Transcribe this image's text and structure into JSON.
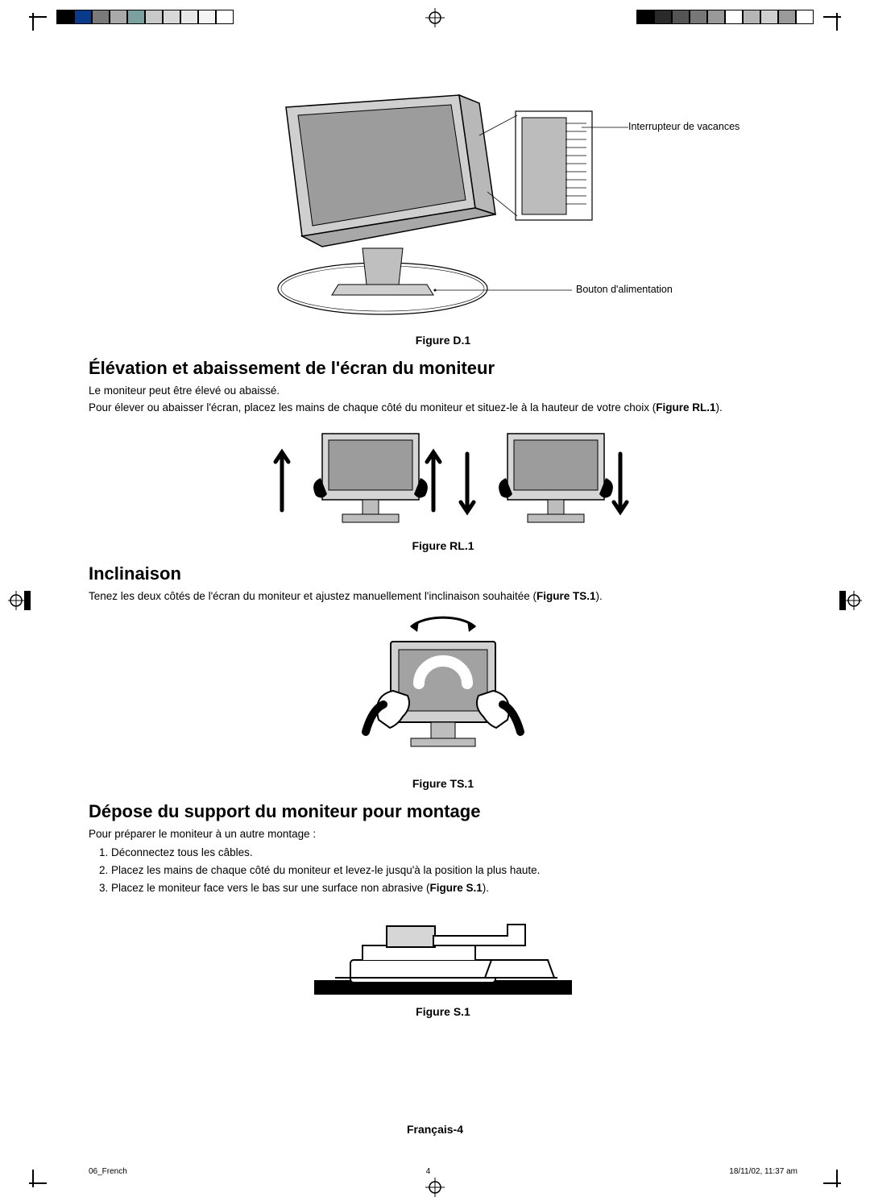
{
  "registration": {
    "swatch_colors_left": [
      "#000000",
      "#0a3a8a",
      "#7a7a7a",
      "#a9a9a9",
      "#7aa0a0",
      "#c9c9c9",
      "#d8d8d8",
      "#e8e8e8",
      "#f4f4f4",
      "#ffffff"
    ],
    "swatch_colors_right": [
      "#000000",
      "#2a2a2a",
      "#555555",
      "#777777",
      "#999999",
      "#ffffff",
      "#b5b5b5",
      "#d0d0d0",
      "#9a9a9a",
      "#ffffff"
    ]
  },
  "figD": {
    "caption": "Figure D.1",
    "label_top": "Interrupteur de vacances",
    "label_bottom": "Bouton d'alimentation",
    "colors": {
      "screen_fill": "#9c9c9c",
      "bezel": "#cfcfcf",
      "bezel_edge": "#000000",
      "stand": "#bfbfbf",
      "base_ellipse_fill": "#ffffff",
      "base_ellipse_stroke": "#000000",
      "inset_fill": "#bcbcbc",
      "leader": "#000000"
    }
  },
  "section1": {
    "heading": "Élévation et abaissement de l'écran du moniteur",
    "p1": "Le moniteur peut être élevé ou abaissé.",
    "p2_a": "Pour élever ou abaisser l'écran, placez les mains de chaque côté du moniteur et situez-le à la hauteur de votre choix (",
    "p2_ref": "Figure RL.1",
    "p2_b": ")."
  },
  "figRL": {
    "caption": "Figure RL.1",
    "colors": {
      "screen_fill": "#9c9c9c",
      "bezel": "#d6d6d6",
      "arrow": "#000000",
      "hand": "#000000",
      "base": "#bdbdbd"
    }
  },
  "section2": {
    "heading": "Inclinaison",
    "p_a": "Tenez les deux côtés de l'écran du moniteur et ajustez manuellement l'inclinaison souhaitée (",
    "p_ref": "Figure TS.1",
    "p_b": ")."
  },
  "figTS": {
    "caption": "Figure TS.1",
    "colors": {
      "screen_fill": "#a2a2a2",
      "bezel": "#d0d0d0",
      "arrow": "#000000",
      "sleeve": "#000000",
      "hand": "#ffffff"
    }
  },
  "section3": {
    "heading": "Dépose du support du moniteur pour montage",
    "intro": "Pour préparer le moniteur à un autre montage :",
    "steps": [
      "Déconnectez tous les câbles.",
      "Placez les mains de chaque côté du moniteur et levez-le jusqu'à la position la plus haute."
    ],
    "step3_a": "Placez le moniteur face vers le bas sur une surface non abrasive (",
    "step3_ref": "Figure S.1",
    "step3_b": ")."
  },
  "figS": {
    "caption": "Figure S.1",
    "colors": {
      "base_bar": "#000000",
      "body_fill": "#ffffff",
      "body_stroke": "#000000",
      "shade": "#d6d6d6"
    }
  },
  "footer": {
    "page_label": "Français-4",
    "doc_id": "06_French",
    "page_num": "4",
    "timestamp": "18/11/02, 11:37 am"
  }
}
